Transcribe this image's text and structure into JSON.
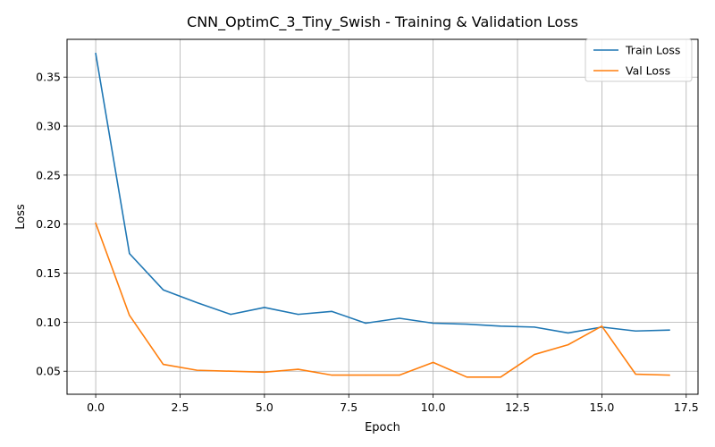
{
  "chart_data": {
    "type": "line",
    "title": "CNN_OptimC_3_Tiny_Swish - Training & Validation Loss",
    "xlabel": "Epoch",
    "ylabel": "Loss",
    "xlim": [
      -0.85,
      17.85
    ],
    "ylim": [
      0.0265,
      0.3885
    ],
    "x": [
      0,
      1,
      2,
      3,
      4,
      5,
      6,
      7,
      8,
      9,
      10,
      11,
      12,
      13,
      14,
      15,
      16,
      17
    ],
    "xticks": [
      0.0,
      2.5,
      5.0,
      7.5,
      10.0,
      12.5,
      15.0,
      17.5
    ],
    "xtick_labels": [
      "0.0",
      "2.5",
      "5.0",
      "7.5",
      "10.0",
      "12.5",
      "15.0",
      "17.5"
    ],
    "yticks": [
      0.05,
      0.1,
      0.15,
      0.2,
      0.25,
      0.3,
      0.35
    ],
    "ytick_labels": [
      "0.05",
      "0.10",
      "0.15",
      "0.20",
      "0.25",
      "0.30",
      "0.35"
    ],
    "grid": true,
    "legend_position": "top-right",
    "series": [
      {
        "name": "Train Loss",
        "color": "#1f77b4",
        "values": [
          0.374,
          0.17,
          0.133,
          0.12,
          0.108,
          0.115,
          0.108,
          0.111,
          0.099,
          0.104,
          0.099,
          0.098,
          0.096,
          0.095,
          0.089,
          0.095,
          0.091,
          0.092
        ]
      },
      {
        "name": "Val Loss",
        "color": "#ff7f0e",
        "values": [
          0.201,
          0.107,
          0.057,
          0.051,
          0.05,
          0.049,
          0.052,
          0.046,
          0.046,
          0.046,
          0.059,
          0.044,
          0.044,
          0.067,
          0.077,
          0.096,
          0.047,
          0.046
        ]
      }
    ]
  }
}
